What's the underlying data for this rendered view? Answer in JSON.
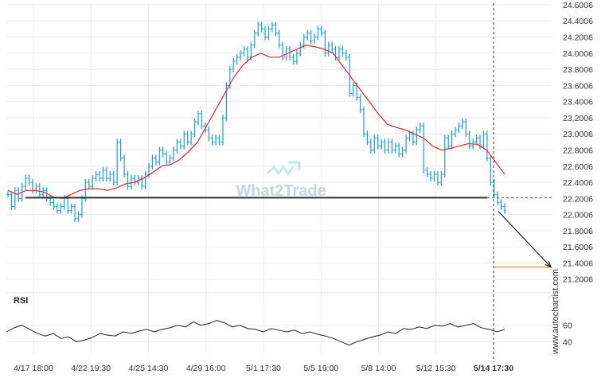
{
  "chart_data": {
    "type": "line",
    "title": "",
    "xlabel": "",
    "ylabel": "",
    "ylim": [
      21.05,
      24.62
    ],
    "grid": true,
    "y_ticks": [
      "24.6006",
      "24.4006",
      "24.2006",
      "24.0006",
      "23.8006",
      "23.6006",
      "23.4006",
      "23.2006",
      "23.0006",
      "22.8006",
      "22.6006",
      "22.4006",
      "22.2006",
      "22.0006",
      "21.8006",
      "21.6006",
      "21.4006",
      "21.2006"
    ],
    "x_ticks": [
      "4/17 18:00",
      "4/22 19:30",
      "4/25 14:30",
      "4/29 16:00",
      "5/1 17:30",
      "5/5 19:00",
      "5/8 14:00",
      "5/12 15:30",
      "5/14 17:30"
    ],
    "watermark": "What2Trade",
    "side_label": "www.autochartist.com",
    "series": [
      {
        "role": "price",
        "color": "#1a9fd4",
        "values": [
          22.25,
          22.1,
          22.3,
          22.2,
          22.35,
          22.45,
          22.4,
          22.3,
          22.35,
          22.25,
          22.3,
          22.2,
          22.15,
          22.1,
          22.05,
          22.1,
          22.2,
          22.05,
          22.1,
          21.95,
          22.0,
          22.2,
          22.4,
          22.35,
          22.45,
          22.5,
          22.45,
          22.55,
          22.45,
          22.5,
          22.4,
          22.9,
          22.7,
          22.5,
          22.35,
          22.45,
          22.4,
          22.45,
          22.35,
          22.5,
          22.6,
          22.7,
          22.65,
          22.8,
          22.75,
          22.65,
          22.7,
          22.8,
          22.9,
          22.85,
          23.0,
          22.9,
          23.0,
          23.15,
          23.25,
          23.1,
          23.05,
          22.95,
          22.9,
          22.95,
          22.9,
          23.2,
          23.6,
          23.8,
          23.9,
          23.95,
          24.0,
          24.05,
          23.95,
          24.1,
          24.25,
          24.35,
          24.3,
          24.2,
          24.3,
          24.35,
          24.25,
          24.1,
          23.95,
          24.05,
          23.95,
          23.9,
          24.0,
          24.1,
          24.2,
          24.25,
          24.15,
          24.2,
          24.3,
          24.25,
          24.0,
          24.1,
          24.05,
          23.95,
          24.05,
          24.0,
          23.95,
          23.5,
          23.6,
          23.45,
          23.3,
          23.0,
          22.9,
          22.8,
          22.95,
          22.85,
          22.9,
          22.8,
          22.9,
          22.8,
          22.85,
          22.75,
          22.8,
          22.95,
          23.0,
          22.9,
          23.05,
          23.1,
          22.55,
          22.5,
          22.45,
          22.5,
          22.4,
          22.5,
          22.95,
          22.85,
          23.0,
          23.05,
          23.1,
          23.15,
          23.0,
          22.85,
          22.9,
          22.95,
          22.85,
          23.0,
          22.7,
          22.4,
          22.25,
          22.15,
          22.1,
          22.05
        ]
      },
      {
        "role": "moving-average",
        "color": "#e8242a",
        "values": [
          22.3,
          22.25,
          22.3,
          22.3,
          22.28,
          22.22,
          22.2,
          22.25,
          22.3,
          22.32,
          22.32,
          22.3,
          22.33,
          22.38,
          22.4,
          22.45,
          22.52,
          22.6,
          22.62,
          22.68,
          22.78,
          22.9,
          23.1,
          23.3,
          23.5,
          23.7,
          23.85,
          23.95,
          24.0,
          23.95,
          23.95,
          24.0,
          24.05,
          24.1,
          24.08,
          24.05,
          24.0,
          23.85,
          23.7,
          23.55,
          23.4,
          23.25,
          23.12,
          23.08,
          23.05,
          23.0,
          22.95,
          22.85,
          22.8,
          22.82,
          22.85,
          22.88,
          22.87,
          22.8,
          22.65,
          22.5
        ]
      }
    ],
    "support_level": 22.21,
    "target_level": 21.35,
    "current_time_label": "5/14 17:30",
    "rsi": {
      "label": "RSI",
      "ticks": [
        "60",
        "40"
      ],
      "range": [
        25,
        80
      ],
      "values": [
        52,
        57,
        60,
        55,
        50,
        47,
        50,
        44,
        46,
        40,
        42,
        45,
        50,
        48,
        47,
        52,
        50,
        53,
        55,
        52,
        55,
        57,
        60,
        58,
        64,
        60,
        62,
        66,
        63,
        58,
        60,
        56,
        55,
        52,
        56,
        54,
        52,
        54,
        50,
        52,
        49,
        47,
        44,
        40,
        36,
        40,
        43,
        46,
        48,
        52,
        50,
        56,
        55,
        58,
        56,
        60,
        59,
        62,
        58,
        60,
        62,
        57,
        55,
        52,
        55
      ]
    }
  }
}
